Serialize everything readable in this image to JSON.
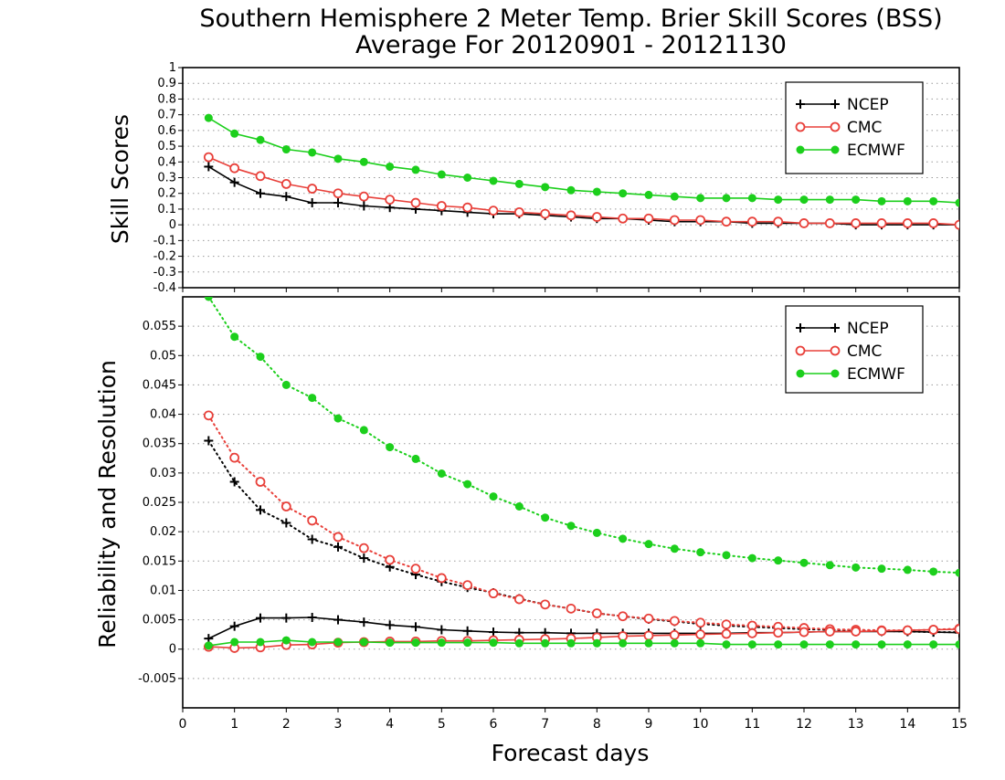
{
  "title_line1": "Southern Hemisphere 2 Meter Temp. Brier Skill Scores (BSS)",
  "title_line2": "Average For 20120901 - 20121130",
  "xlabel": "Forecast days",
  "colors": {
    "NCEP": "#000000",
    "CMC": "#e8403a",
    "ECMWF": "#1ccf1c"
  },
  "chart_data": [
    {
      "type": "line",
      "title": "Southern Hemisphere 2 Meter Temp. Brier Skill Scores (BSS)",
      "xlabel": "Forecast days",
      "ylabel": "Skill Scores",
      "xlim": [
        0,
        15
      ],
      "ylim": [
        -0.4,
        1
      ],
      "xticks": [
        "0",
        "1",
        "2",
        "3",
        "4",
        "5",
        "6",
        "7",
        "8",
        "9",
        "10",
        "11",
        "12",
        "13",
        "14",
        "15"
      ],
      "yticks": [
        "-0.4",
        "-0.3",
        "-0.2",
        "-0.1",
        "0",
        "0.1",
        "0.2",
        "0.3",
        "0.4",
        "0.5",
        "0.6",
        "0.7",
        "0.8",
        "0.9",
        "1"
      ],
      "grid": true,
      "legend": "top-right",
      "x": [
        0.5,
        1,
        1.5,
        2,
        2.5,
        3,
        3.5,
        4,
        4.5,
        5,
        5.5,
        6,
        6.5,
        7,
        7.5,
        8,
        8.5,
        9,
        9.5,
        10,
        10.5,
        11,
        11.5,
        12,
        12.5,
        13,
        13.5,
        14,
        14.5,
        15
      ],
      "series": [
        {
          "name": "NCEP",
          "marker": "plus",
          "style": "solid",
          "values": [
            0.37,
            0.27,
            0.2,
            0.18,
            0.14,
            0.14,
            0.12,
            0.11,
            0.1,
            0.09,
            0.08,
            0.07,
            0.07,
            0.06,
            0.05,
            0.04,
            0.04,
            0.03,
            0.02,
            0.02,
            0.02,
            0.01,
            0.01,
            0.01,
            0.01,
            0.0,
            0.0,
            0.0,
            0.0,
            0.0
          ]
        },
        {
          "name": "CMC",
          "marker": "open-circle",
          "style": "solid",
          "values": [
            0.43,
            0.36,
            0.31,
            0.26,
            0.23,
            0.2,
            0.18,
            0.16,
            0.14,
            0.12,
            0.11,
            0.09,
            0.08,
            0.07,
            0.06,
            0.05,
            0.04,
            0.04,
            0.03,
            0.03,
            0.02,
            0.02,
            0.02,
            0.01,
            0.01,
            0.01,
            0.01,
            0.01,
            0.01,
            0.0
          ]
        },
        {
          "name": "ECMWF",
          "marker": "filled-circle",
          "style": "solid",
          "values": [
            0.68,
            0.58,
            0.54,
            0.48,
            0.46,
            0.42,
            0.4,
            0.37,
            0.35,
            0.32,
            0.3,
            0.28,
            0.26,
            0.24,
            0.22,
            0.21,
            0.2,
            0.19,
            0.18,
            0.17,
            0.17,
            0.17,
            0.16,
            0.16,
            0.16,
            0.16,
            0.15,
            0.15,
            0.15,
            0.14
          ]
        }
      ]
    },
    {
      "type": "line",
      "xlabel": "Forecast days",
      "ylabel": "Reliability and Resolution",
      "xlim": [
        0,
        15
      ],
      "ylim": [
        -0.01,
        0.06
      ],
      "xticks": [
        "0",
        "1",
        "2",
        "3",
        "4",
        "5",
        "6",
        "7",
        "8",
        "9",
        "10",
        "11",
        "12",
        "13",
        "14",
        "15"
      ],
      "yticks": [
        "-0.005",
        "0",
        "0.005",
        "0.01",
        "0.015",
        "0.02",
        "0.025",
        "0.03",
        "0.035",
        "0.04",
        "0.045",
        "0.05",
        "0.055"
      ],
      "grid": true,
      "legend": "top-right",
      "x": [
        0.5,
        1,
        1.5,
        2,
        2.5,
        3,
        3.5,
        4,
        4.5,
        5,
        5.5,
        6,
        6.5,
        7,
        7.5,
        8,
        8.5,
        9,
        9.5,
        10,
        10.5,
        11,
        11.5,
        12,
        12.5,
        13,
        13.5,
        14,
        14.5,
        15
      ],
      "series": [
        {
          "name": "NCEP",
          "marker": "plus",
          "style": "dotted",
          "values": [
            0.0355,
            0.0285,
            0.0237,
            0.0215,
            0.0187,
            0.0174,
            0.0155,
            0.014,
            0.0127,
            0.0115,
            0.0105,
            0.0096,
            0.0086,
            0.0076,
            0.0069,
            0.0061,
            0.0056,
            0.0051,
            0.0047,
            0.0043,
            0.004,
            0.0038,
            0.0036,
            0.0034,
            0.0033,
            0.0032,
            0.0031,
            0.003,
            0.0029,
            0.0029
          ]
        },
        {
          "name": "CMC",
          "marker": "open-circle",
          "style": "dotted",
          "values": [
            0.0398,
            0.0326,
            0.0285,
            0.0243,
            0.0219,
            0.0191,
            0.0172,
            0.0152,
            0.0137,
            0.0121,
            0.0109,
            0.0095,
            0.0085,
            0.0076,
            0.0069,
            0.0061,
            0.0056,
            0.0052,
            0.0048,
            0.0045,
            0.0042,
            0.004,
            0.0038,
            0.0036,
            0.0034,
            0.0033,
            0.0032,
            0.0032,
            0.0033,
            0.0035
          ]
        },
        {
          "name": "ECMWF",
          "marker": "filled-circle",
          "style": "dotted",
          "values": [
            0.06,
            0.0532,
            0.0498,
            0.045,
            0.0428,
            0.0393,
            0.0373,
            0.0344,
            0.0324,
            0.0299,
            0.0281,
            0.026,
            0.0243,
            0.0224,
            0.021,
            0.0198,
            0.0188,
            0.0179,
            0.0171,
            0.0165,
            0.016,
            0.0155,
            0.0151,
            0.0147,
            0.0143,
            0.0139,
            0.0137,
            0.0135,
            0.0132,
            0.013
          ]
        },
        {
          "name": "NCEP",
          "marker": "plus",
          "style": "solid",
          "values": [
            0.0018,
            0.0039,
            0.0053,
            0.0053,
            0.0054,
            0.005,
            0.0046,
            0.0041,
            0.0038,
            0.0033,
            0.0031,
            0.0029,
            0.0028,
            0.0028,
            0.0027,
            0.0027,
            0.0027,
            0.0027,
            0.0027,
            0.0027,
            0.0027,
            0.0028,
            0.0028,
            0.0029,
            0.003,
            0.003,
            0.003,
            0.003,
            0.0029,
            0.0028
          ]
        },
        {
          "name": "CMC",
          "marker": "open-circle",
          "style": "solid",
          "values": [
            0.0004,
            0.0002,
            0.0003,
            0.0007,
            0.0008,
            0.0011,
            0.0012,
            0.0013,
            0.0013,
            0.0014,
            0.0014,
            0.0015,
            0.0016,
            0.0017,
            0.0018,
            0.002,
            0.0022,
            0.0023,
            0.0024,
            0.0025,
            0.0026,
            0.0027,
            0.0028,
            0.0029,
            0.003,
            0.003,
            0.0031,
            0.0032,
            0.0033,
            0.0034
          ]
        },
        {
          "name": "ECMWF",
          "marker": "filled-circle",
          "style": "solid",
          "values": [
            0.0006,
            0.0012,
            0.0012,
            0.0015,
            0.0012,
            0.0012,
            0.0012,
            0.0011,
            0.0011,
            0.0011,
            0.0011,
            0.0011,
            0.001,
            0.001,
            0.001,
            0.001,
            0.001,
            0.001,
            0.001,
            0.001,
            0.0008,
            0.0008,
            0.0008,
            0.0008,
            0.0008,
            0.0008,
            0.0008,
            0.0008,
            0.0008,
            0.0008
          ]
        }
      ]
    }
  ]
}
